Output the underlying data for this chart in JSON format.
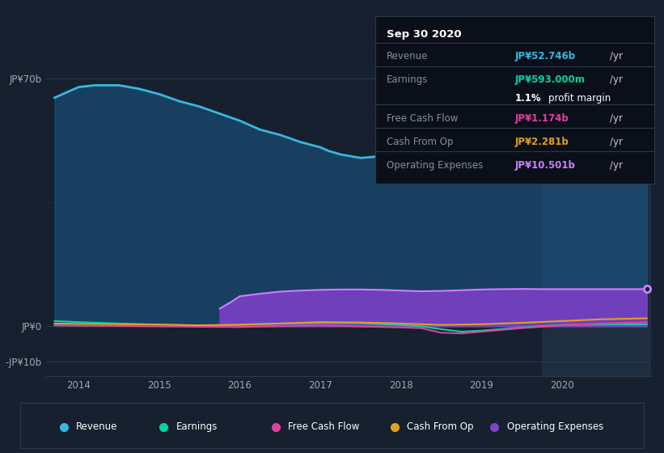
{
  "bg_color": "#16202e",
  "plot_bg_color": "#16202e",
  "highlight_bg": "#1e2d3f",
  "title": "Sep 30 2020",
  "ylabel_top": "JP¥70b",
  "ylabel_zero": "JP¥0",
  "ylabel_neg": "-JP¥10b",
  "ylim": [
    -14000000000.0,
    78000000000.0
  ],
  "yticks": [
    -10000000000.0,
    0,
    70000000000.0
  ],
  "xlim": [
    2013.6,
    2021.1
  ],
  "xticks": [
    2014,
    2015,
    2016,
    2017,
    2018,
    2019,
    2020
  ],
  "revenue_color": "#38b8e0",
  "earnings_color": "#00d4a8",
  "fcf_color": "#e040a0",
  "cashfromop_color": "#e0a020",
  "opex_color": "#8040cc",
  "opex_line_color": "#cc80ff",
  "info_box": {
    "date": "Sep 30 2020",
    "revenue_val": "JP¥52.746b",
    "revenue_color": "#38b8e0",
    "earnings_val": "JP¥593.000m",
    "earnings_color": "#00d4a8",
    "profit_margin": "1.1%",
    "fcf_val": "JP¥1.174b",
    "fcf_color": "#e040a0",
    "cashfromop_val": "JP¥2.281b",
    "cashfromop_color": "#e0a020",
    "opex_val": "JP¥10.501b",
    "opex_color": "#cc80ff"
  },
  "revenue_x": [
    2013.7,
    2013.85,
    2014.0,
    2014.2,
    2014.5,
    2014.75,
    2015.0,
    2015.25,
    2015.5,
    2015.75,
    2016.0,
    2016.25,
    2016.5,
    2016.75,
    2017.0,
    2017.1,
    2017.25,
    2017.5,
    2017.75,
    2018.0,
    2018.25,
    2018.5,
    2018.75,
    2019.0,
    2019.25,
    2019.5,
    2019.75,
    2020.0,
    2020.25,
    2020.5,
    2020.75,
    2021.05
  ],
  "revenue_y": [
    64500000000.0,
    66000000000.0,
    67500000000.0,
    68000000000.0,
    68000000000.0,
    67000000000.0,
    65500000000.0,
    63500000000.0,
    62000000000.0,
    60000000000.0,
    58000000000.0,
    55500000000.0,
    54000000000.0,
    52000000000.0,
    50500000000.0,
    49500000000.0,
    48500000000.0,
    47500000000.0,
    48000000000.0,
    49000000000.0,
    51000000000.0,
    53500000000.0,
    56000000000.0,
    58500000000.0,
    59500000000.0,
    59500000000.0,
    59000000000.0,
    57500000000.0,
    56500000000.0,
    55000000000.0,
    53500000000.0,
    52746000000.0
  ],
  "earnings_x": [
    2013.7,
    2014.0,
    2014.5,
    2015.0,
    2015.5,
    2016.0,
    2016.5,
    2017.0,
    2017.5,
    2018.0,
    2018.25,
    2018.5,
    2018.75,
    2019.0,
    2019.5,
    2020.0,
    2020.5,
    2021.05
  ],
  "earnings_y": [
    1500000000.0,
    1200000000.0,
    800000000.0,
    500000000.0,
    200000000.0,
    400000000.0,
    800000000.0,
    1000000000.0,
    900000000.0,
    400000000.0,
    0.0,
    -800000000.0,
    -1500000000.0,
    -1200000000.0,
    -300000000.0,
    400000000.0,
    550000000.0,
    593000000.0
  ],
  "fcf_x": [
    2013.7,
    2014.0,
    2014.5,
    2015.0,
    2015.5,
    2016.0,
    2016.5,
    2017.0,
    2017.5,
    2018.0,
    2018.25,
    2018.5,
    2018.75,
    2019.0,
    2019.5,
    2020.0,
    2020.5,
    2021.05
  ],
  "fcf_y": [
    300000000.0,
    200000000.0,
    100000000.0,
    0.0,
    -100000000.0,
    -200000000.0,
    100000000.0,
    300000000.0,
    0.0,
    -300000000.0,
    -500000000.0,
    -1800000000.0,
    -2000000000.0,
    -1500000000.0,
    -500000000.0,
    300000000.0,
    800000000.0,
    1174000000.0
  ],
  "cashfromop_x": [
    2013.7,
    2014.0,
    2014.5,
    2015.0,
    2015.5,
    2016.0,
    2016.5,
    2017.0,
    2017.5,
    2018.0,
    2018.5,
    2019.0,
    2019.5,
    2020.0,
    2020.5,
    2021.05
  ],
  "cashfromop_y": [
    800000000.0,
    700000000.0,
    600000000.0,
    500000000.0,
    300000000.0,
    500000000.0,
    800000000.0,
    1200000000.0,
    1100000000.0,
    800000000.0,
    400000000.0,
    600000000.0,
    1000000000.0,
    1500000000.0,
    2000000000.0,
    2281000000.0
  ],
  "opex_x": [
    2015.75,
    2015.9,
    2016.0,
    2016.25,
    2016.5,
    2016.75,
    2017.0,
    2017.25,
    2017.5,
    2017.75,
    2018.0,
    2018.25,
    2018.5,
    2018.75,
    2019.0,
    2019.25,
    2019.5,
    2019.75,
    2020.0,
    2020.25,
    2020.5,
    2020.75,
    2021.05
  ],
  "opex_y": [
    5000000000.0,
    7000000000.0,
    8500000000.0,
    9200000000.0,
    9800000000.0,
    10100000000.0,
    10300000000.0,
    10400000000.0,
    10400000000.0,
    10300000000.0,
    10100000000.0,
    9900000000.0,
    10000000000.0,
    10200000000.0,
    10400000000.0,
    10500000000.0,
    10550000000.0,
    10500000000.0,
    10500000000.0,
    10500000000.0,
    10500000000.0,
    10500000000.0,
    10501000000.0
  ],
  "legend_items": [
    {
      "label": "Revenue",
      "color": "#38b8e0"
    },
    {
      "label": "Earnings",
      "color": "#00d4a8"
    },
    {
      "label": "Free Cash Flow",
      "color": "#e040a0"
    },
    {
      "label": "Cash From Op",
      "color": "#e0a020"
    },
    {
      "label": "Operating Expenses",
      "color": "#8040cc"
    }
  ]
}
